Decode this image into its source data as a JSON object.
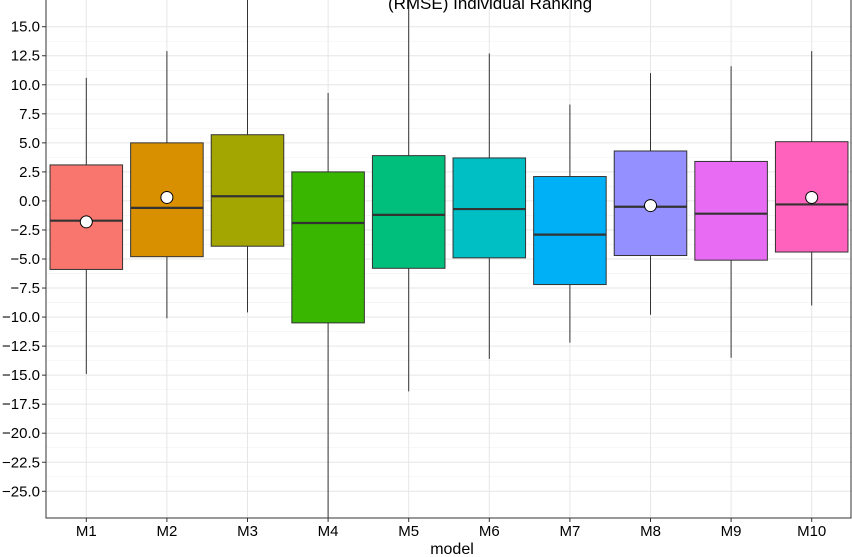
{
  "chart_data": {
    "type": "box",
    "title": "(RMSE) Individual Ranking",
    "xlabel": "model",
    "ylabel": "",
    "ylim": [
      -27.3,
      17.3
    ],
    "yticks": [
      15.0,
      12.5,
      10.0,
      7.5,
      5.0,
      2.5,
      0.0,
      -2.5,
      -5.0,
      -7.5,
      -10.0,
      -12.5,
      -15.0,
      -17.5,
      -20.0,
      -22.5,
      -25.0
    ],
    "ytick_labels": [
      "15.0",
      "12.5",
      "10.0",
      "7.5",
      "5.0",
      "2.5",
      "0.0",
      "−2.5",
      "−5.0",
      "−7.5",
      "−10.0",
      "−12.5",
      "−15.0",
      "−17.5",
      "−20.0",
      "−22.5",
      "−25.0"
    ],
    "grid": true,
    "categories": [
      "M1",
      "M2",
      "M3",
      "M4",
      "M5",
      "M6",
      "M7",
      "M8",
      "M9",
      "M10"
    ],
    "boxes": [
      {
        "whisker_low": -14.9,
        "q1": -5.9,
        "median": -1.7,
        "q3": 3.1,
        "whisker_high": 10.6,
        "mean": -1.8,
        "color": "#F8766D"
      },
      {
        "whisker_low": -10.1,
        "q1": -4.8,
        "median": -0.6,
        "q3": 5.0,
        "whisker_high": 12.9,
        "mean": 0.3,
        "color": "#D89000"
      },
      {
        "whisker_low": -9.6,
        "q1": -3.9,
        "median": 0.4,
        "q3": 5.7,
        "whisker_high": null,
        "mean": null,
        "color": "#A3A500"
      },
      {
        "whisker_low": null,
        "q1": -10.5,
        "median": -1.9,
        "q3": 2.5,
        "whisker_high": 9.3,
        "mean": null,
        "color": "#39B600"
      },
      {
        "whisker_low": -16.4,
        "q1": -5.8,
        "median": -1.2,
        "q3": 3.9,
        "whisker_high": null,
        "mean": null,
        "color": "#00BF7D"
      },
      {
        "whisker_low": -13.6,
        "q1": -4.9,
        "median": -0.7,
        "q3": 3.7,
        "whisker_high": 12.7,
        "mean": null,
        "color": "#00BFC4"
      },
      {
        "whisker_low": -12.2,
        "q1": -7.2,
        "median": -2.9,
        "q3": 2.1,
        "whisker_high": 8.3,
        "mean": null,
        "color": "#00B0F6"
      },
      {
        "whisker_low": -9.8,
        "q1": -4.7,
        "median": -0.5,
        "q3": 4.3,
        "whisker_high": 11.0,
        "mean": -0.4,
        "color": "#9590FF"
      },
      {
        "whisker_low": -13.5,
        "q1": -5.1,
        "median": -1.1,
        "q3": 3.4,
        "whisker_high": 11.6,
        "mean": null,
        "color": "#E76BF3"
      },
      {
        "whisker_low": -9.0,
        "q1": -4.4,
        "median": -0.3,
        "q3": 5.1,
        "whisker_high": 12.9,
        "mean": 0.3,
        "color": "#FF62BC"
      }
    ]
  }
}
